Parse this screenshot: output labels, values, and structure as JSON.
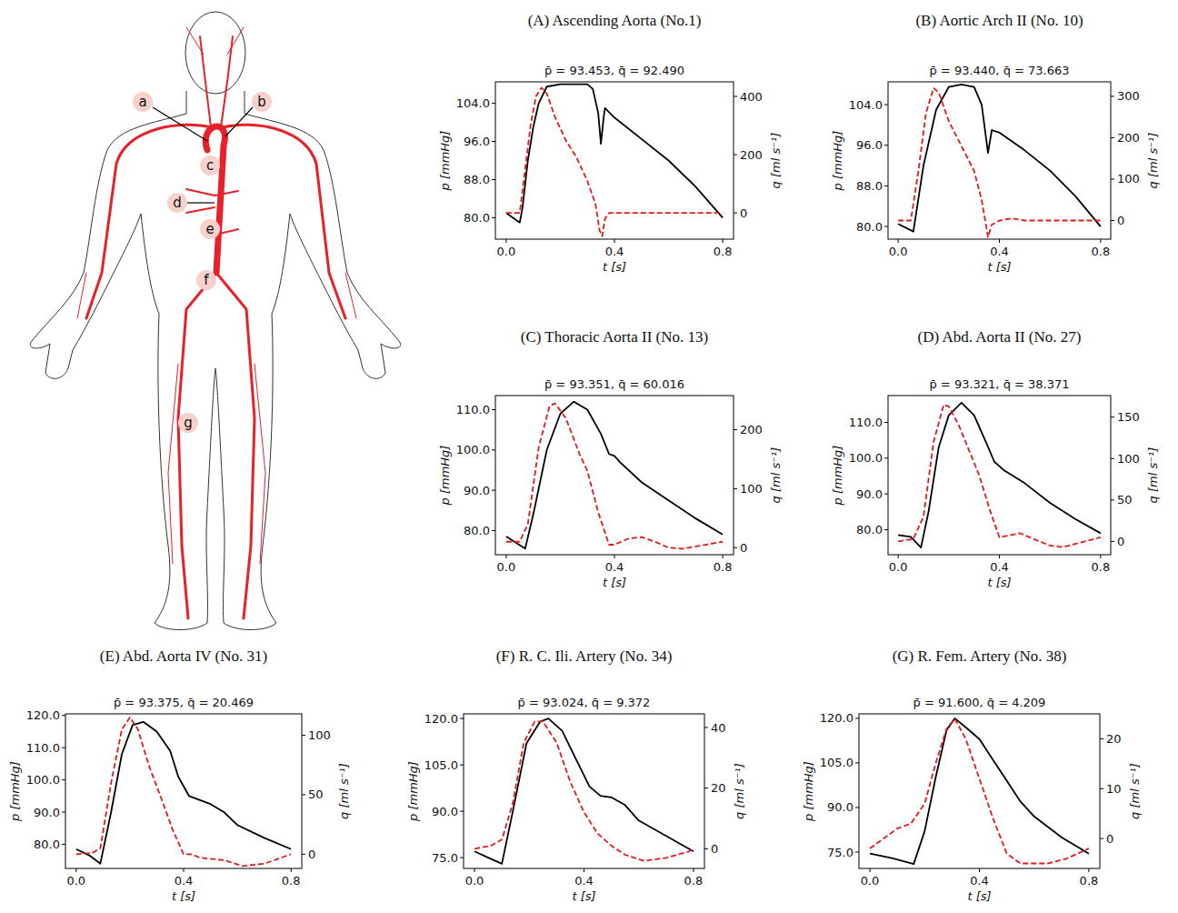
{
  "diagram": {
    "labels": [
      "a",
      "b",
      "c",
      "d",
      "e",
      "f",
      "g"
    ]
  },
  "chart_data": [
    {
      "type": "line",
      "title": "(A) Ascending Aorta (No.1)",
      "subtitle": "p̄ =  93.453, q̄ =  92.490",
      "x_label": "t [s]",
      "y_label": "p [mmHg]",
      "y2_label": "q [ml s⁻¹]",
      "xlim": [
        -0.04,
        0.84
      ],
      "xticks": [
        {
          "value": 0,
          "label": "0.0"
        },
        {
          "value": 0.4,
          "label": "0.4"
        },
        {
          "value": 0.8,
          "label": "0.8"
        }
      ],
      "ylim": [
        75.5,
        108.5
      ],
      "yticks": [
        {
          "value": 80,
          "label": "80.0"
        },
        {
          "value": 88,
          "label": "88.0"
        },
        {
          "value": 96,
          "label": "96.0"
        },
        {
          "value": 104,
          "label": "104.0"
        }
      ],
      "y2lim": [
        -90,
        450
      ],
      "y2ticks": [
        0,
        200,
        400
      ],
      "series": [
        {
          "color": "#000000",
          "line_style": "solid",
          "x": [
            0,
            0.05,
            0.06,
            0.08,
            0.1,
            0.12,
            0.15,
            0.2,
            0.3,
            0.32,
            0.34,
            0.35,
            0.36,
            0.365,
            0.4,
            0.5,
            0.6,
            0.7,
            0.8
          ],
          "values": [
            81,
            79,
            82,
            92,
            99,
            104,
            107.5,
            108,
            108,
            107,
            102,
            95.5,
            101,
            103,
            101,
            96.5,
            92,
            86.5,
            80
          ]
        },
        {
          "color": "#e41a1c",
          "line_style": "dashed",
          "axis": "y2",
          "x": [
            0,
            0.05,
            0.07,
            0.09,
            0.11,
            0.13,
            0.15,
            0.18,
            0.22,
            0.26,
            0.3,
            0.33,
            0.345,
            0.355,
            0.365,
            0.38,
            0.5,
            0.8
          ],
          "values": [
            0,
            0,
            150,
            300,
            400,
            430,
            410,
            330,
            250,
            190,
            110,
            30,
            -60,
            -80,
            -20,
            0,
            0,
            0
          ]
        }
      ]
    },
    {
      "type": "line",
      "title": "(B) Aortic Arch II (No. 10)",
      "subtitle": "p̄ =  93.440, q̄ =  73.663",
      "x_label": "t [s]",
      "y_label": "p [mmHg]",
      "y2_label": "q [ml s⁻¹]",
      "xlim": [
        -0.04,
        0.84
      ],
      "xticks": [
        {
          "value": 0,
          "label": "0.0"
        },
        {
          "value": 0.4,
          "label": "0.4"
        },
        {
          "value": 0.8,
          "label": "0.8"
        }
      ],
      "ylim": [
        77.5,
        108.5
      ],
      "yticks": [
        {
          "value": 80,
          "label": "80.0"
        },
        {
          "value": 88,
          "label": "88.0"
        },
        {
          "value": 96,
          "label": "96.0"
        },
        {
          "value": 104,
          "label": "104.0"
        }
      ],
      "y2lim": [
        -45,
        335
      ],
      "y2ticks": [
        0,
        100,
        200,
        300
      ],
      "series": [
        {
          "color": "#000000",
          "line_style": "solid",
          "x": [
            0,
            0.06,
            0.1,
            0.15,
            0.2,
            0.25,
            0.3,
            0.33,
            0.355,
            0.37,
            0.4,
            0.5,
            0.6,
            0.7,
            0.8
          ],
          "values": [
            80.5,
            79,
            92,
            103,
            107.5,
            108,
            107.5,
            104,
            94.5,
            99,
            98.5,
            95,
            91,
            86,
            80
          ]
        },
        {
          "color": "#e41a1c",
          "line_style": "dashed",
          "axis": "y2",
          "x": [
            0,
            0.05,
            0.08,
            0.11,
            0.14,
            0.16,
            0.2,
            0.25,
            0.3,
            0.33,
            0.355,
            0.37,
            0.4,
            0.45,
            0.5,
            0.6,
            0.8
          ],
          "values": [
            0,
            0,
            120,
            260,
            320,
            310,
            240,
            180,
            120,
            50,
            -40,
            -10,
            0,
            5,
            0,
            0,
            0
          ]
        }
      ]
    },
    {
      "type": "line",
      "title": "(C) Thoracic Aorta II (No. 13)",
      "subtitle": "p̄ =  93.351, q̄ =  60.016",
      "x_label": "t [s]",
      "y_label": "p [mmHg]",
      "y2_label": "q [ml s⁻¹]",
      "xlim": [
        -0.04,
        0.84
      ],
      "xticks": [
        {
          "value": 0,
          "label": "0.0"
        },
        {
          "value": 0.4,
          "label": "0.4"
        },
        {
          "value": 0.8,
          "label": "0.8"
        }
      ],
      "ylim": [
        74,
        113.5
      ],
      "yticks": [
        {
          "value": 80,
          "label": "80.0"
        },
        {
          "value": 90,
          "label": "90.0"
        },
        {
          "value": 100,
          "label": "100.0"
        },
        {
          "value": 110,
          "label": "110.0"
        }
      ],
      "y2lim": [
        -12,
        258
      ],
      "y2ticks": [
        0,
        100,
        200
      ],
      "series": [
        {
          "color": "#000000",
          "line_style": "solid",
          "x": [
            0,
            0.07,
            0.1,
            0.15,
            0.2,
            0.25,
            0.3,
            0.35,
            0.38,
            0.4,
            0.42,
            0.5,
            0.6,
            0.7,
            0.8
          ],
          "values": [
            78.5,
            75.5,
            84,
            100,
            109,
            112,
            110,
            104,
            99,
            98.5,
            97,
            92,
            87.5,
            83,
            79
          ]
        },
        {
          "color": "#e41a1c",
          "line_style": "dashed",
          "axis": "y2",
          "x": [
            0,
            0.05,
            0.08,
            0.12,
            0.16,
            0.18,
            0.22,
            0.27,
            0.3,
            0.34,
            0.38,
            0.4,
            0.45,
            0.5,
            0.55,
            0.6,
            0.65,
            0.7,
            0.8
          ],
          "values": [
            10,
            10,
            40,
            170,
            240,
            245,
            220,
            160,
            130,
            60,
            5,
            5,
            15,
            18,
            10,
            0,
            -2,
            2,
            10
          ]
        }
      ]
    },
    {
      "type": "line",
      "title": "(D) Abd. Aorta II (No. 27)",
      "subtitle": "p̄ =  93.321, q̄ =  38.371",
      "x_label": "t [s]",
      "y_label": "p [mmHg]",
      "y2_label": "q [ml s⁻¹]",
      "xlim": [
        -0.04,
        0.84
      ],
      "xticks": [
        {
          "value": 0,
          "label": "0.0"
        },
        {
          "value": 0.4,
          "label": "0.4"
        },
        {
          "value": 0.8,
          "label": "0.8"
        }
      ],
      "ylim": [
        73,
        117.5
      ],
      "yticks": [
        {
          "value": 80,
          "label": "80.0"
        },
        {
          "value": 90,
          "label": "90.0"
        },
        {
          "value": 100,
          "label": "100.0"
        },
        {
          "value": 110,
          "label": "110.0"
        }
      ],
      "y2lim": [
        -16,
        176
      ],
      "y2ticks": [
        0,
        50,
        100,
        150
      ],
      "series": [
        {
          "color": "#000000",
          "line_style": "solid",
          "x": [
            0,
            0.05,
            0.09,
            0.12,
            0.16,
            0.2,
            0.25,
            0.3,
            0.35,
            0.38,
            0.42,
            0.5,
            0.6,
            0.7,
            0.8
          ],
          "values": [
            78.5,
            78,
            75,
            85,
            103,
            112,
            115.5,
            112,
            104,
            99,
            96.5,
            93,
            87.5,
            83,
            79
          ]
        },
        {
          "color": "#e41a1c",
          "line_style": "dashed",
          "axis": "y2",
          "x": [
            0,
            0.06,
            0.1,
            0.14,
            0.18,
            0.2,
            0.24,
            0.28,
            0.32,
            0.36,
            0.4,
            0.45,
            0.48,
            0.52,
            0.6,
            0.65,
            0.7,
            0.8
          ],
          "values": [
            0,
            3,
            30,
            120,
            165,
            163,
            140,
            110,
            80,
            40,
            5,
            8,
            10,
            5,
            -5,
            -7,
            -3,
            5
          ]
        }
      ]
    },
    {
      "type": "line",
      "title": "(E) Abd. Aorta IV (No. 31)",
      "subtitle": "p̄ =  93.375, q̄ =  20.469",
      "x_label": "t [s]",
      "y_label": "p [mmHg]",
      "y2_label": "q [ml s⁻¹]",
      "xlim": [
        -0.04,
        0.84
      ],
      "xticks": [
        {
          "value": 0,
          "label": "0.0"
        },
        {
          "value": 0.4,
          "label": "0.4"
        },
        {
          "value": 0.8,
          "label": "0.8"
        }
      ],
      "ylim": [
        72.5,
        120.5
      ],
      "yticks": [
        {
          "value": 80,
          "label": "80.0"
        },
        {
          "value": 90,
          "label": "90.0"
        },
        {
          "value": 100,
          "label": "100.0"
        },
        {
          "value": 110,
          "label": "110.0"
        },
        {
          "value": 120,
          "label": "120.0"
        }
      ],
      "y2lim": [
        -12,
        118
      ],
      "y2ticks": [
        0,
        50,
        100
      ],
      "series": [
        {
          "color": "#000000",
          "line_style": "solid",
          "x": [
            0,
            0.05,
            0.09,
            0.13,
            0.17,
            0.21,
            0.25,
            0.3,
            0.35,
            0.38,
            0.42,
            0.5,
            0.55,
            0.6,
            0.7,
            0.8
          ],
          "values": [
            78.5,
            76.5,
            74,
            90,
            108,
            117,
            118,
            115,
            109,
            101,
            95,
            92.5,
            90,
            86,
            82,
            78.5
          ]
        },
        {
          "color": "#e41a1c",
          "line_style": "dashed",
          "axis": "y2",
          "x": [
            0,
            0.06,
            0.09,
            0.13,
            0.17,
            0.2,
            0.23,
            0.27,
            0.32,
            0.36,
            0.4,
            0.43,
            0.46,
            0.55,
            0.62,
            0.7,
            0.75,
            0.8
          ],
          "values": [
            0,
            1,
            5,
            60,
            105,
            115,
            105,
            75,
            45,
            20,
            0,
            0,
            -3,
            -5,
            -10,
            -8,
            -4,
            0
          ]
        }
      ]
    },
    {
      "type": "line",
      "title": "(F) R. C. Ili. Artery (No. 34)",
      "subtitle": "p̄ =  93.024, q̄ =  9.372",
      "x_label": "t [s]",
      "y_label": "p [mmHg]",
      "y2_label": "q [ml s⁻¹]",
      "xlim": [
        -0.04,
        0.84
      ],
      "xticks": [
        {
          "value": 0,
          "label": "0.0"
        },
        {
          "value": 0.4,
          "label": "0.4"
        },
        {
          "value": 0.8,
          "label": "0.8"
        }
      ],
      "ylim": [
        71.5,
        121.5
      ],
      "yticks": [
        {
          "value": 75,
          "label": "75.0"
        },
        {
          "value": 90,
          "label": "90.0"
        },
        {
          "value": 105,
          "label": "105.0"
        },
        {
          "value": 120,
          "label": "120.0"
        }
      ],
      "y2lim": [
        -6.5,
        44.5
      ],
      "y2ticks": [
        0,
        20,
        40
      ],
      "series": [
        {
          "color": "#000000",
          "line_style": "solid",
          "x": [
            0,
            0.05,
            0.1,
            0.14,
            0.19,
            0.24,
            0.27,
            0.32,
            0.37,
            0.42,
            0.46,
            0.5,
            0.55,
            0.6,
            0.7,
            0.8
          ],
          "values": [
            77,
            75,
            73,
            90,
            112,
            119,
            120,
            116,
            107,
            98,
            95,
            94.5,
            92,
            87,
            82,
            77
          ]
        },
        {
          "color": "#e41a1c",
          "line_style": "dashed",
          "axis": "y2",
          "x": [
            0,
            0.06,
            0.1,
            0.14,
            0.18,
            0.22,
            0.25,
            0.3,
            0.35,
            0.4,
            0.45,
            0.5,
            0.55,
            0.62,
            0.7,
            0.78,
            0.8
          ],
          "values": [
            0,
            1,
            3,
            15,
            35,
            42,
            42,
            35,
            22,
            12,
            5,
            1,
            -2,
            -4,
            -3,
            -1,
            0
          ]
        }
      ]
    },
    {
      "type": "line",
      "title": "(G) R. Fem. Artery (No. 38)",
      "subtitle": "p̄ =  91.600, q̄ =  4.209",
      "x_label": "t [s]",
      "y_label": "p [mmHg]",
      "y2_label": "q [ml s⁻¹]",
      "xlim": [
        -0.04,
        0.84
      ],
      "xticks": [
        {
          "value": 0,
          "label": "0.0"
        },
        {
          "value": 0.4,
          "label": "0.4"
        },
        {
          "value": 0.8,
          "label": "0.8"
        }
      ],
      "ylim": [
        69.5,
        121.5
      ],
      "yticks": [
        {
          "value": 75,
          "label": "75.0"
        },
        {
          "value": 90,
          "label": "90.0"
        },
        {
          "value": 105,
          "label": "105.0"
        },
        {
          "value": 120,
          "label": "120.0"
        }
      ],
      "y2lim": [
        -6,
        25
      ],
      "y2ticks": [
        0,
        10,
        20
      ],
      "series": [
        {
          "color": "#000000",
          "line_style": "solid",
          "x": [
            0,
            0.08,
            0.16,
            0.2,
            0.24,
            0.28,
            0.31,
            0.35,
            0.4,
            0.45,
            0.5,
            0.55,
            0.6,
            0.7,
            0.8
          ],
          "values": [
            74.5,
            73,
            71,
            82,
            100,
            116,
            120,
            117,
            113,
            106,
            99,
            92,
            87,
            80,
            74.5
          ]
        },
        {
          "color": "#e41a1c",
          "line_style": "dashed",
          "axis": "y2",
          "x": [
            0,
            0.05,
            0.1,
            0.15,
            0.2,
            0.24,
            0.28,
            0.31,
            0.35,
            0.4,
            0.45,
            0.5,
            0.55,
            0.65,
            0.72,
            0.8
          ],
          "values": [
            -2,
            0,
            2,
            3,
            7,
            15,
            22,
            24,
            20,
            12,
            4,
            -3,
            -5,
            -5,
            -4,
            -2
          ]
        }
      ]
    }
  ]
}
